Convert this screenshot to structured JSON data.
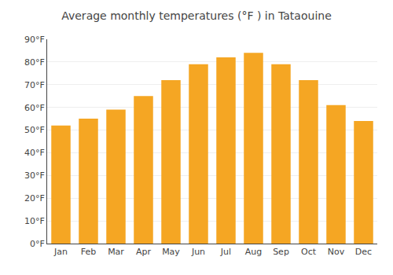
{
  "chart_data": {
    "type": "bar",
    "title": "Average monthly temperatures (°F ) in Tataouine",
    "categories": [
      "Jan",
      "Feb",
      "Mar",
      "Apr",
      "May",
      "Jun",
      "Jul",
      "Aug",
      "Sep",
      "Oct",
      "Nov",
      "Dec"
    ],
    "values": [
      52,
      55,
      59,
      65,
      72,
      79,
      82,
      84,
      79,
      72,
      61,
      54
    ],
    "color": "#F5A623",
    "ylim": [
      0,
      90
    ],
    "yticks": [
      {
        "value": 0,
        "label": "0°F"
      },
      {
        "value": 10,
        "label": "10°F"
      },
      {
        "value": 20,
        "label": "20°F"
      },
      {
        "value": 30,
        "label": "30°F"
      },
      {
        "value": 40,
        "label": "40°F"
      },
      {
        "value": 50,
        "label": "50°F"
      },
      {
        "value": 60,
        "label": "60°F"
      },
      {
        "value": 70,
        "label": "70°F"
      },
      {
        "value": 80,
        "label": "80°F"
      },
      {
        "value": 90,
        "label": "90°F"
      }
    ],
    "grid": true
  }
}
